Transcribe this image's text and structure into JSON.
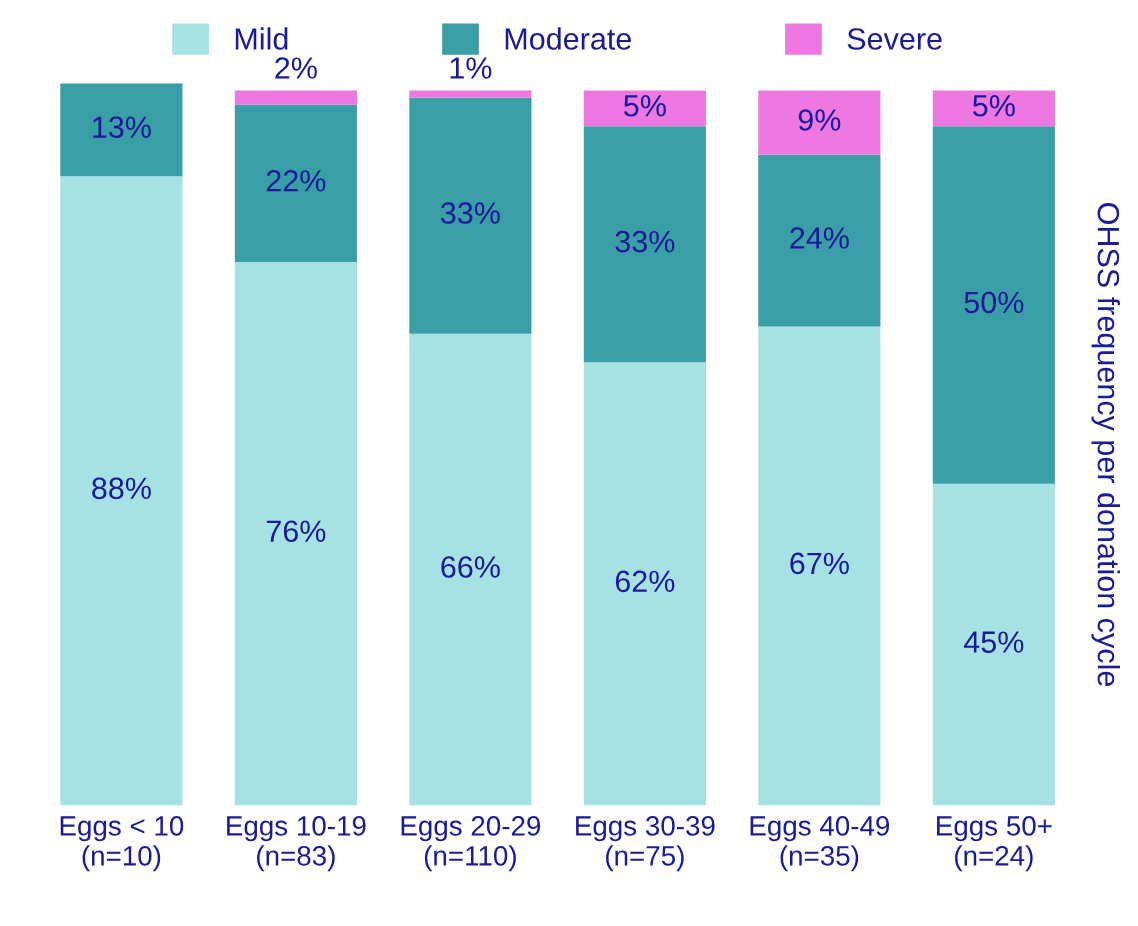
{
  "chart_data": {
    "type": "bar",
    "stacked": true,
    "legend": "top",
    "y2label": "OHSS frequency per donation cycle",
    "categories": [
      "Eggs < 10\n(n=10)",
      "Eggs 10-19\n(n=83)",
      "Eggs 20-29\n(n=110)",
      "Eggs 30-39\n(n=75)",
      "Eggs 40-49\n(n=35)",
      "Eggs 50+\n(n=24)"
    ],
    "series": [
      {
        "name": "Mild",
        "color": "#a6e2e4",
        "values": [
          88,
          76,
          66,
          62,
          67,
          45
        ],
        "value_labels": [
          "88%",
          "76%",
          "66%",
          "62%",
          "67%",
          "45%"
        ]
      },
      {
        "name": "Moderate",
        "color": "#3a9ea6",
        "values": [
          13,
          22,
          33,
          33,
          24,
          50
        ],
        "value_labels": [
          "13%",
          "22%",
          "33%",
          "33%",
          "24%",
          "50%"
        ]
      },
      {
        "name": "Severe",
        "color": "#ee78e2",
        "values": [
          null,
          2,
          1,
          5,
          9,
          5
        ],
        "value_labels": [
          null,
          "2%",
          "1%",
          "5%",
          "9%",
          "5%"
        ]
      }
    ]
  }
}
